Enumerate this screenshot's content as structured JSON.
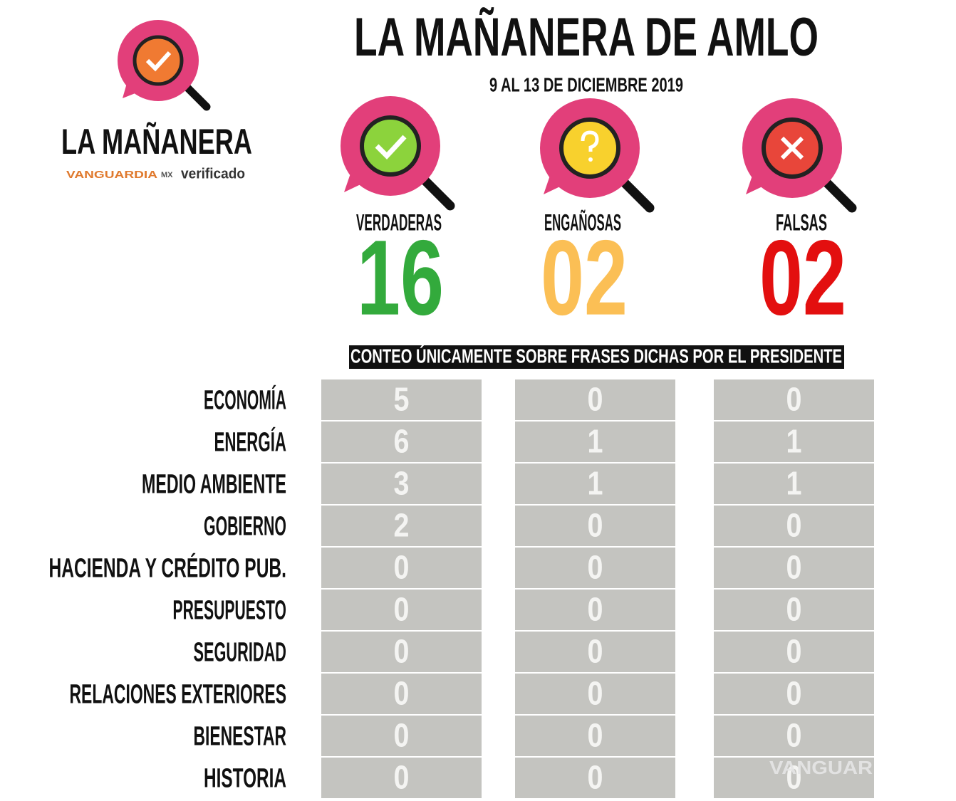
{
  "logo": {
    "title": "LA MAÑANERA",
    "brand": "VANGUARDIA",
    "brand_suffix": "MX",
    "partner": "verificado"
  },
  "header": {
    "title": "LA MAÑANERA DE AMLO",
    "subtitle": "9 AL 13 DE DICIEMBRE 2019"
  },
  "summary": [
    {
      "label": "VERDADERAS",
      "count": "16"
    },
    {
      "label": "ENGAÑOSAS",
      "count": "02"
    },
    {
      "label": "FALSAS",
      "count": "02"
    }
  ],
  "note": "CONTEO ÚNICAMENTE SOBRE FRASES DICHAS POR EL PRESIDENTE",
  "table": {
    "rows": [
      {
        "topic": "ECONOMÍA",
        "values": [
          5,
          0,
          0
        ]
      },
      {
        "topic": "ENERGÍA",
        "values": [
          6,
          1,
          1
        ]
      },
      {
        "topic": "MEDIO AMBIENTE",
        "values": [
          3,
          1,
          1
        ]
      },
      {
        "topic": "GOBIERNO",
        "values": [
          2,
          0,
          0
        ]
      },
      {
        "topic": "HACIENDA Y CRÉDITO PUB.",
        "values": [
          0,
          0,
          0
        ]
      },
      {
        "topic": "PRESUPUESTO",
        "values": [
          0,
          0,
          0
        ]
      },
      {
        "topic": "SEGURIDAD",
        "values": [
          0,
          0,
          0
        ]
      },
      {
        "topic": "RELACIONES EXTERIORES",
        "values": [
          0,
          0,
          0
        ]
      },
      {
        "topic": "BIENESTAR",
        "values": [
          0,
          0,
          0
        ]
      },
      {
        "topic": "HISTORIA",
        "values": [
          0,
          0,
          0
        ]
      }
    ]
  },
  "watermark": "VANGUAR"
}
